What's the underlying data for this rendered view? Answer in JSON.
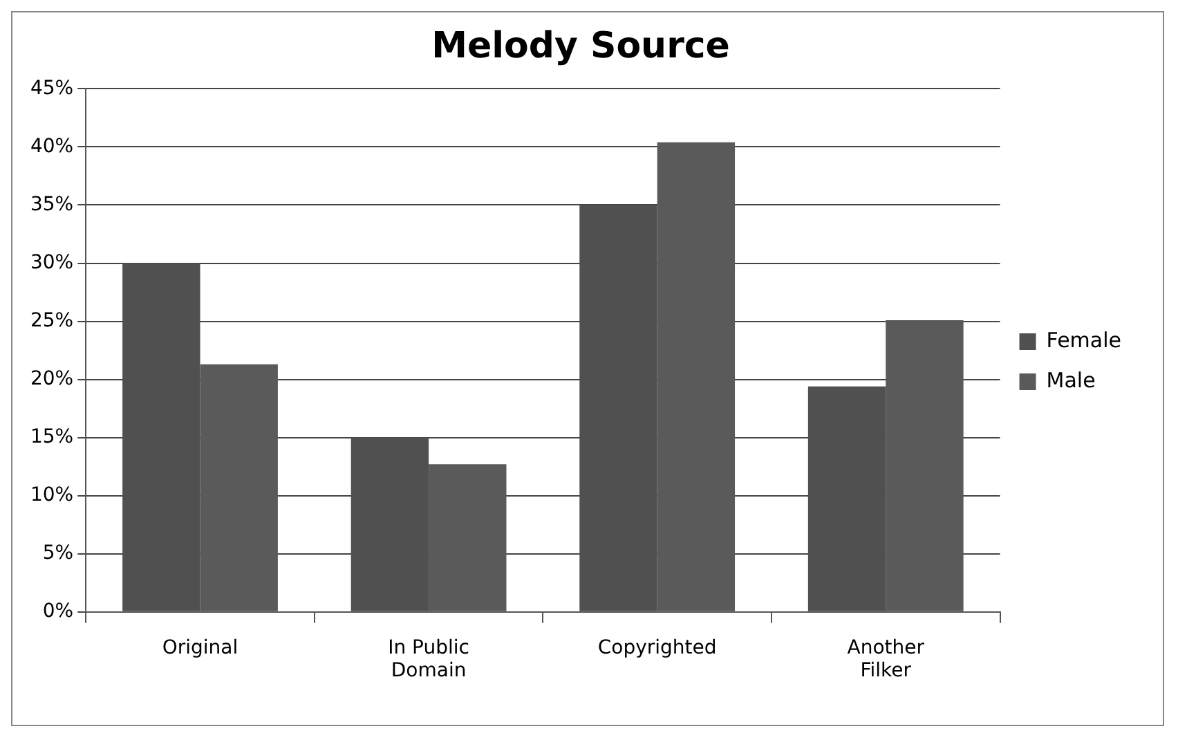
{
  "chart_data": {
    "type": "bar",
    "title": "Melody Source",
    "categories": [
      "Original",
      "In Public Domain",
      "Copyrighted",
      "Another Filker"
    ],
    "series": [
      {
        "name": "Female",
        "color": "#505050",
        "values": [
          30,
          15,
          35,
          19.4
        ]
      },
      {
        "name": "Male",
        "color": "#5a5a5a",
        "values": [
          21.3,
          12.7,
          40.4,
          25.1
        ]
      }
    ],
    "ylim": [
      0,
      45
    ],
    "yticks": [
      {
        "value": 0,
        "label": "0%"
      },
      {
        "value": 5,
        "label": "5%"
      },
      {
        "value": 10,
        "label": "10%"
      },
      {
        "value": 15,
        "label": "15%"
      },
      {
        "value": 20,
        "label": "20%"
      },
      {
        "value": 25,
        "label": "25%"
      },
      {
        "value": 30,
        "label": "30%"
      },
      {
        "value": 35,
        "label": "35%"
      },
      {
        "value": 40,
        "label": "40%"
      },
      {
        "value": 45,
        "label": "45%"
      }
    ],
    "grid": "y",
    "legend": "right"
  }
}
